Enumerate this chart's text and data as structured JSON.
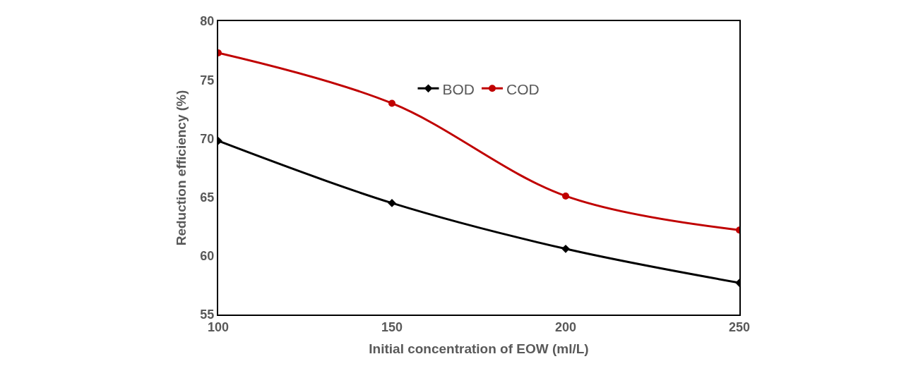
{
  "chart_data": {
    "type": "line",
    "xlabel": "Initial concentration of EOW (ml/L)",
    "ylabel": "Reduction efficiency (%)",
    "x": [
      100,
      150,
      200,
      250
    ],
    "series": [
      {
        "name": "BOD",
        "color": "#000000",
        "marker": "diamond",
        "values": [
          69.8,
          64.5,
          60.6,
          57.7
        ]
      },
      {
        "name": "COD",
        "color": "#c00000",
        "marker": "circle",
        "values": [
          77.3,
          73.0,
          65.1,
          62.2
        ]
      }
    ],
    "xlim": [
      100,
      250
    ],
    "xticks": [
      100,
      150,
      200,
      250
    ],
    "ylim": [
      55,
      80
    ],
    "yticks": [
      55,
      60,
      65,
      70,
      75,
      80
    ],
    "legend": "top",
    "line_style": "solid"
  }
}
